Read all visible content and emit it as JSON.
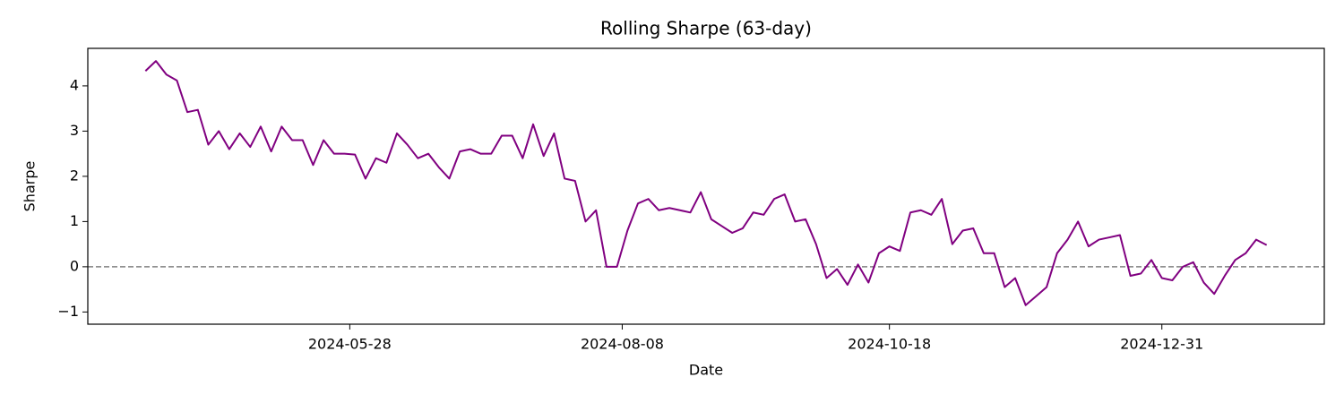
{
  "chart_data": {
    "type": "line",
    "title": "Rolling Sharpe (63-day)",
    "xlabel": "Date",
    "ylabel": "Sharpe",
    "x": [
      "2024-04-03",
      "2024-04-05",
      "2024-04-09",
      "2024-04-11",
      "2024-04-15",
      "2024-04-17",
      "2024-04-19",
      "2024-04-23",
      "2024-04-25",
      "2024-04-29",
      "2024-05-01",
      "2024-05-03",
      "2024-05-07",
      "2024-05-09",
      "2024-05-13",
      "2024-05-15",
      "2024-05-17",
      "2024-05-21",
      "2024-05-23",
      "2024-05-27",
      "2024-05-29",
      "2024-05-31",
      "2024-06-04",
      "2024-06-06",
      "2024-06-10",
      "2024-06-12",
      "2024-06-14",
      "2024-06-18",
      "2024-06-20",
      "2024-06-24",
      "2024-06-26",
      "2024-06-28",
      "2024-07-02",
      "2024-07-04",
      "2024-07-08",
      "2024-07-10",
      "2024-07-12",
      "2024-07-16",
      "2024-07-18",
      "2024-07-22",
      "2024-07-24",
      "2024-07-26",
      "2024-07-30",
      "2024-08-01",
      "2024-08-05",
      "2024-08-07",
      "2024-08-09",
      "2024-08-13",
      "2024-08-15",
      "2024-08-19",
      "2024-08-21",
      "2024-08-23",
      "2024-08-27",
      "2024-08-29",
      "2024-09-02",
      "2024-09-04",
      "2024-09-06",
      "2024-09-10",
      "2024-09-12",
      "2024-09-16",
      "2024-09-18",
      "2024-09-20",
      "2024-09-24",
      "2024-09-26",
      "2024-09-30",
      "2024-10-02",
      "2024-10-04",
      "2024-10-08",
      "2024-10-10",
      "2024-10-14",
      "2024-10-16",
      "2024-10-18",
      "2024-10-22",
      "2024-10-24",
      "2024-10-28",
      "2024-10-30",
      "2024-11-01",
      "2024-11-05",
      "2024-11-07",
      "2024-11-11",
      "2024-11-13",
      "2024-11-15",
      "2024-11-19",
      "2024-11-21",
      "2024-11-25",
      "2024-11-27",
      "2024-11-29",
      "2024-12-03",
      "2024-12-05",
      "2024-12-09",
      "2024-12-11",
      "2024-12-13",
      "2024-12-17",
      "2024-12-19",
      "2024-12-23",
      "2024-12-25",
      "2024-12-27",
      "2024-12-31",
      "2025-01-02",
      "2025-01-06",
      "2025-01-08",
      "2025-01-10",
      "2025-01-14",
      "2025-01-16",
      "2025-01-20",
      "2025-01-22",
      "2025-01-24",
      "2025-01-28"
    ],
    "series": [
      {
        "name": "Sharpe",
        "color": "#800080",
        "values": [
          4.33,
          4.55,
          4.25,
          4.12,
          3.42,
          3.47,
          2.7,
          3.0,
          2.6,
          2.95,
          2.65,
          3.1,
          2.55,
          3.1,
          2.8,
          2.8,
          2.25,
          2.8,
          2.5,
          2.5,
          2.48,
          1.95,
          2.4,
          2.3,
          2.95,
          2.7,
          2.4,
          2.5,
          2.2,
          1.95,
          2.55,
          2.6,
          2.5,
          2.5,
          2.9,
          2.9,
          2.4,
          3.15,
          2.45,
          2.95,
          1.95,
          1.9,
          1.0,
          1.25,
          0.0,
          0.0,
          0.8,
          1.4,
          1.5,
          1.25,
          1.3,
          1.25,
          1.2,
          1.65,
          1.05,
          0.9,
          0.75,
          0.85,
          1.2,
          1.15,
          1.5,
          1.6,
          1.0,
          1.05,
          0.5,
          -0.25,
          -0.05,
          -0.4,
          0.05,
          -0.35,
          0.3,
          0.45,
          0.35,
          1.2,
          1.25,
          1.15,
          1.5,
          0.5,
          0.8,
          0.85,
          0.3,
          0.3,
          -0.45,
          -0.25,
          -0.85,
          -0.65,
          -0.45,
          0.3,
          0.6,
          1.0,
          0.45,
          0.6,
          0.65,
          0.7,
          -0.2,
          -0.15,
          0.15,
          -0.25,
          -0.3,
          0.0,
          0.1,
          -0.35,
          -0.6,
          -0.2,
          0.15,
          0.3,
          0.6,
          0.48
        ]
      }
    ],
    "xlim": [
      "2024-03-19",
      "2025-02-12"
    ],
    "xticks": [
      "2024-05-28",
      "2024-08-08",
      "2024-10-18",
      "2024-12-31"
    ],
    "ylim": [
      -1.27,
      4.83
    ],
    "yticks": [
      {
        "value": -1,
        "label": "−1"
      },
      0,
      1,
      2,
      3,
      4
    ],
    "reference_line": {
      "value": 0,
      "color": "#808080",
      "style": "dashed"
    },
    "grid": false
  }
}
